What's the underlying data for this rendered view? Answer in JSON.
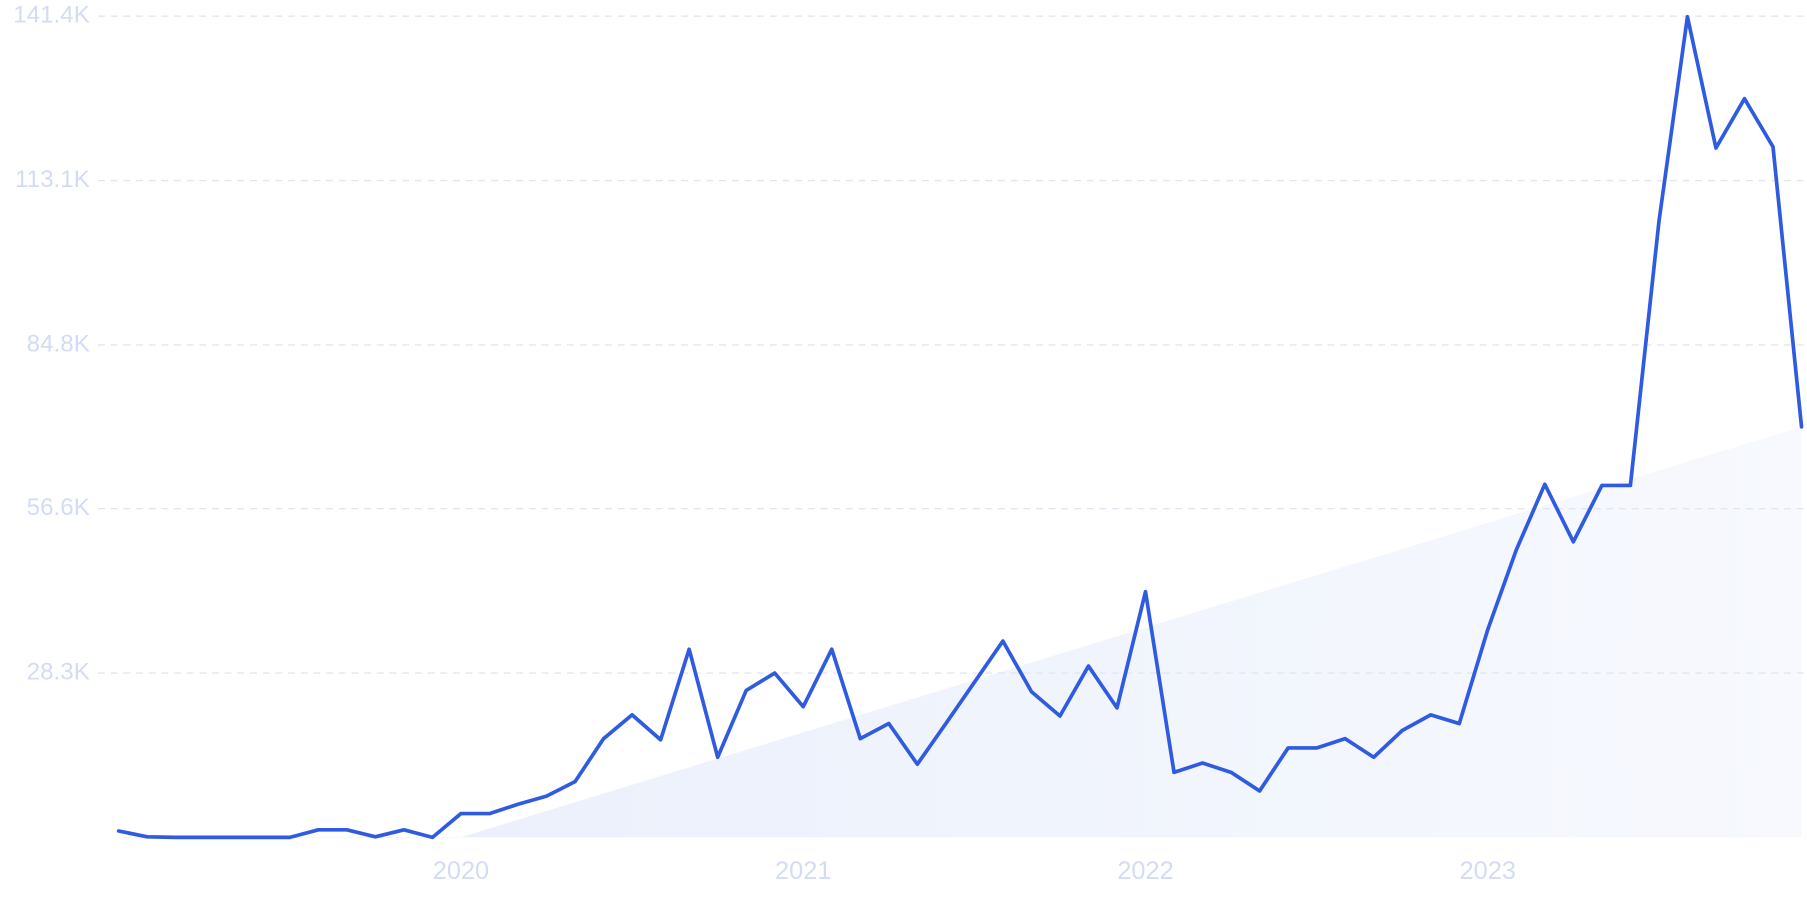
{
  "chart_data": {
    "type": "line",
    "categories": [
      null,
      null,
      null,
      null,
      null,
      null,
      null,
      null,
      null,
      null,
      null,
      null,
      "2020",
      null,
      null,
      null,
      null,
      null,
      null,
      null,
      null,
      null,
      null,
      null,
      "2021",
      null,
      null,
      null,
      null,
      null,
      null,
      null,
      null,
      null,
      null,
      null,
      "2022",
      null,
      null,
      null,
      null,
      null,
      null,
      null,
      null,
      null,
      null,
      null,
      "2023",
      null,
      null,
      null,
      null,
      null,
      null,
      null,
      null,
      null,
      null,
      null
    ],
    "series": [
      {
        "color": "#2f5be0",
        "values": [
          1100,
          100,
          0,
          0,
          0,
          0,
          0,
          1300,
          1300,
          100,
          1300,
          0,
          4100,
          4100,
          5700,
          7100,
          9600,
          17000,
          21100,
          16800,
          32400,
          13800,
          25300,
          28300,
          22500,
          32400,
          17000,
          19600,
          12600,
          19600,
          26700,
          33800,
          25100,
          20900,
          29500,
          22300,
          42300,
          11200,
          12800,
          11200,
          8000,
          15400,
          15400,
          17000,
          13800,
          18400,
          21100,
          19600,
          35800,
          49500,
          60800,
          50900,
          60600,
          60600,
          106000,
          141300,
          118700,
          127200,
          118900,
          70700
        ]
      }
    ],
    "trend": {
      "color": "#e6eefb",
      "values": [
        -18000,
        70700
      ]
    },
    "ylim": [
      0,
      141400
    ],
    "yticks": [
      {
        "value": 28300,
        "label": "28.3K"
      },
      {
        "value": 56600,
        "label": "56.6K"
      },
      {
        "value": 84800,
        "label": "84.8K"
      },
      {
        "value": 113100,
        "label": "113.1K"
      },
      {
        "value": 141400,
        "label": "141.4K"
      }
    ],
    "grid": true
  }
}
